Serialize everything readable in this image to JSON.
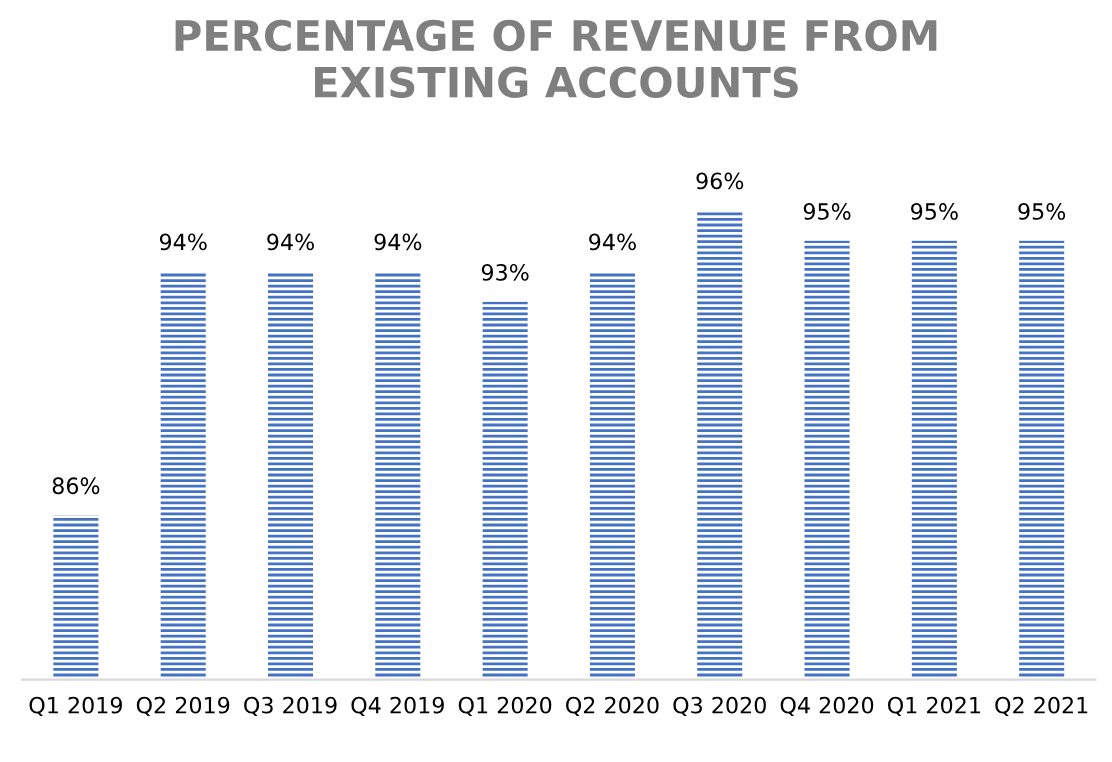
{
  "chart_data": {
    "type": "bar",
    "title": "PERCENTAGE OF REVENUE FROM\nEXISTING ACCOUNTS",
    "categories": [
      "Q1 2019",
      "Q2 2019",
      "Q3 2019",
      "Q4 2019",
      "Q1 2020",
      "Q2 2020",
      "Q3 2020",
      "Q4 2020",
      "Q1 2021",
      "Q2 2021"
    ],
    "values": [
      86,
      94,
      94,
      94,
      93,
      94,
      96,
      95,
      95,
      95
    ],
    "value_labels": [
      "86%",
      "94%",
      "94%",
      "94%",
      "93%",
      "94%",
      "96%",
      "95%",
      "95%",
      "95%"
    ],
    "color": "#4472c4",
    "ylim": [
      80.6,
      96
    ],
    "tick_labels": "x",
    "grid": false,
    "legend": false
  }
}
